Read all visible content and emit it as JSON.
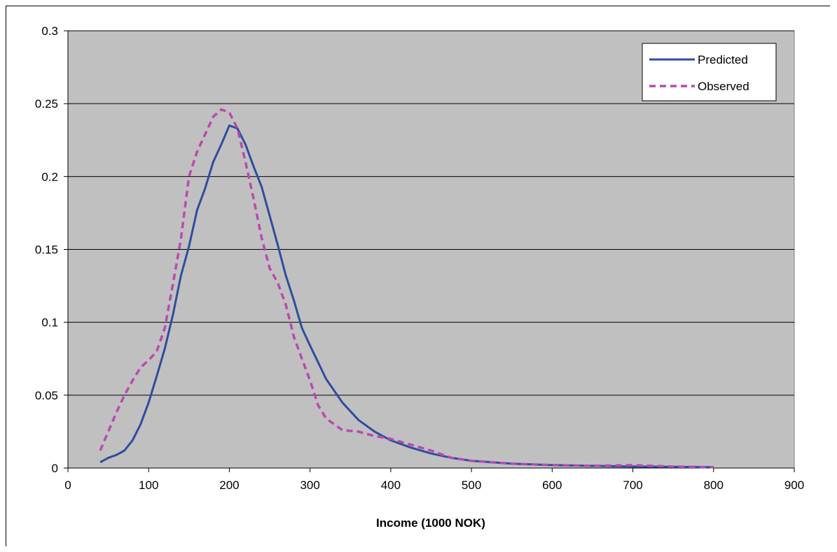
{
  "chart_data": {
    "type": "line",
    "title": "",
    "xlabel": "Income (1000 NOK)",
    "ylabel": "",
    "xlim": [
      0,
      900
    ],
    "ylim": [
      0,
      0.3
    ],
    "x_ticks": [
      "0",
      "100",
      "200",
      "300",
      "400",
      "500",
      "600",
      "700",
      "800",
      "900"
    ],
    "y_ticks": [
      "0",
      "0.05",
      "0.1",
      "0.15",
      "0.2",
      "0.25",
      "0.3"
    ],
    "grid": "horizontal",
    "legend_position": "top-right",
    "plot_background": "#c0c0c0",
    "series": [
      {
        "name": "Predicted",
        "color": "#2e4d9e",
        "style": "solid",
        "x": [
          40,
          50,
          60,
          70,
          80,
          90,
          100,
          110,
          120,
          130,
          140,
          150,
          160,
          170,
          180,
          190,
          200,
          210,
          220,
          230,
          240,
          250,
          260,
          270,
          280,
          290,
          300,
          320,
          340,
          360,
          380,
          400,
          425,
          450,
          475,
          500,
          550,
          600,
          650,
          700,
          750,
          800
        ],
        "y": [
          0.004,
          0.007,
          0.009,
          0.012,
          0.019,
          0.03,
          0.045,
          0.063,
          0.082,
          0.105,
          0.132,
          0.152,
          0.177,
          0.192,
          0.21,
          0.222,
          0.235,
          0.233,
          0.222,
          0.207,
          0.193,
          0.173,
          0.153,
          0.132,
          0.115,
          0.096,
          0.084,
          0.061,
          0.045,
          0.033,
          0.025,
          0.019,
          0.014,
          0.01,
          0.007,
          0.005,
          0.003,
          0.002,
          0.0015,
          0.001,
          0.0008,
          0.0006
        ]
      },
      {
        "name": "Observed",
        "color": "#b84ab0",
        "style": "dashed",
        "x": [
          40,
          50,
          60,
          70,
          80,
          90,
          100,
          110,
          120,
          130,
          140,
          150,
          160,
          170,
          180,
          190,
          200,
          210,
          220,
          230,
          240,
          250,
          260,
          270,
          280,
          290,
          300,
          310,
          320,
          340,
          360,
          380,
          400,
          425,
          450,
          475,
          500,
          550,
          600,
          650,
          700,
          750,
          800
        ],
        "y": [
          0.012,
          0.025,
          0.038,
          0.05,
          0.06,
          0.069,
          0.074,
          0.08,
          0.096,
          0.126,
          0.157,
          0.2,
          0.217,
          0.229,
          0.241,
          0.246,
          0.244,
          0.233,
          0.21,
          0.185,
          0.158,
          0.137,
          0.127,
          0.112,
          0.09,
          0.075,
          0.06,
          0.043,
          0.034,
          0.026,
          0.025,
          0.022,
          0.02,
          0.016,
          0.012,
          0.007,
          0.005,
          0.003,
          0.002,
          0.0015,
          0.002,
          0.001,
          0.0006
        ]
      }
    ]
  }
}
